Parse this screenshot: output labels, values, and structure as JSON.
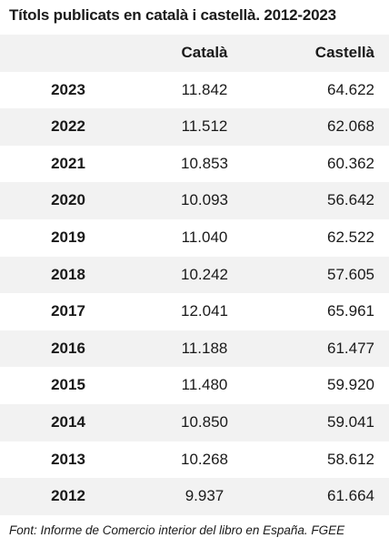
{
  "chart_data": {
    "type": "table",
    "title": "Títols publicats en català i castellà. 2012-2023",
    "columns": [
      "",
      "Català",
      "Castellà"
    ],
    "rows": [
      {
        "year": "2023",
        "catala": "11.842",
        "castella": "64.622"
      },
      {
        "year": "2022",
        "catala": "11.512",
        "castella": "62.068"
      },
      {
        "year": "2021",
        "catala": "10.853",
        "castella": "60.362"
      },
      {
        "year": "2020",
        "catala": "10.093",
        "castella": "56.642"
      },
      {
        "year": "2019",
        "catala": "11.040",
        "castella": "62.522"
      },
      {
        "year": "2018",
        "catala": "10.242",
        "castella": "57.605"
      },
      {
        "year": "2017",
        "catala": "12.041",
        "castella": "65.961"
      },
      {
        "year": "2016",
        "catala": "11.188",
        "castella": "61.477"
      },
      {
        "year": "2015",
        "catala": "11.480",
        "castella": "59.920"
      },
      {
        "year": "2014",
        "catala": "10.850",
        "castella": "59.041"
      },
      {
        "year": "2013",
        "catala": "10.268",
        "castella": "58.612"
      },
      {
        "year": "2012",
        "catala": "9.937",
        "castella": "61.664"
      }
    ],
    "source": "Font: Informe de Comercio interior del libro en España. FGEE"
  },
  "colors": {
    "stripe": "#f2f2f2",
    "background": "#ffffff",
    "text": "#1a1a1a"
  }
}
